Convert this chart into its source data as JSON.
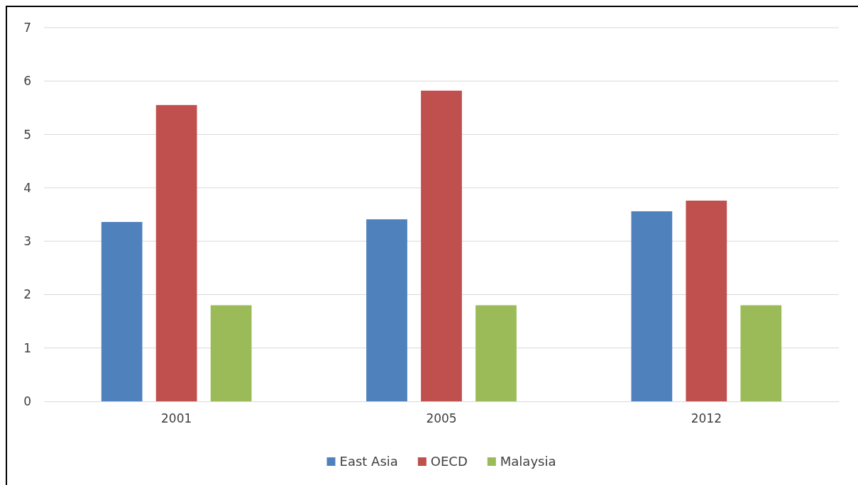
{
  "chart_data": {
    "type": "bar",
    "categories": [
      "2001",
      "2005",
      "2012"
    ],
    "series": [
      {
        "name": "East Asia",
        "color": "#4f81bd",
        "values": [
          3.36,
          3.41,
          3.56
        ]
      },
      {
        "name": "OECD",
        "color": "#c0504d",
        "values": [
          5.55,
          5.82,
          3.76
        ]
      },
      {
        "name": "Malaysia",
        "color": "#9bbb59",
        "values": [
          1.8,
          1.8,
          1.8
        ]
      }
    ],
    "ylim": [
      0,
      7
    ],
    "yticks": [
      0,
      1,
      2,
      3,
      4,
      5,
      6,
      7
    ],
    "grid": "y",
    "legend": "bottom"
  }
}
